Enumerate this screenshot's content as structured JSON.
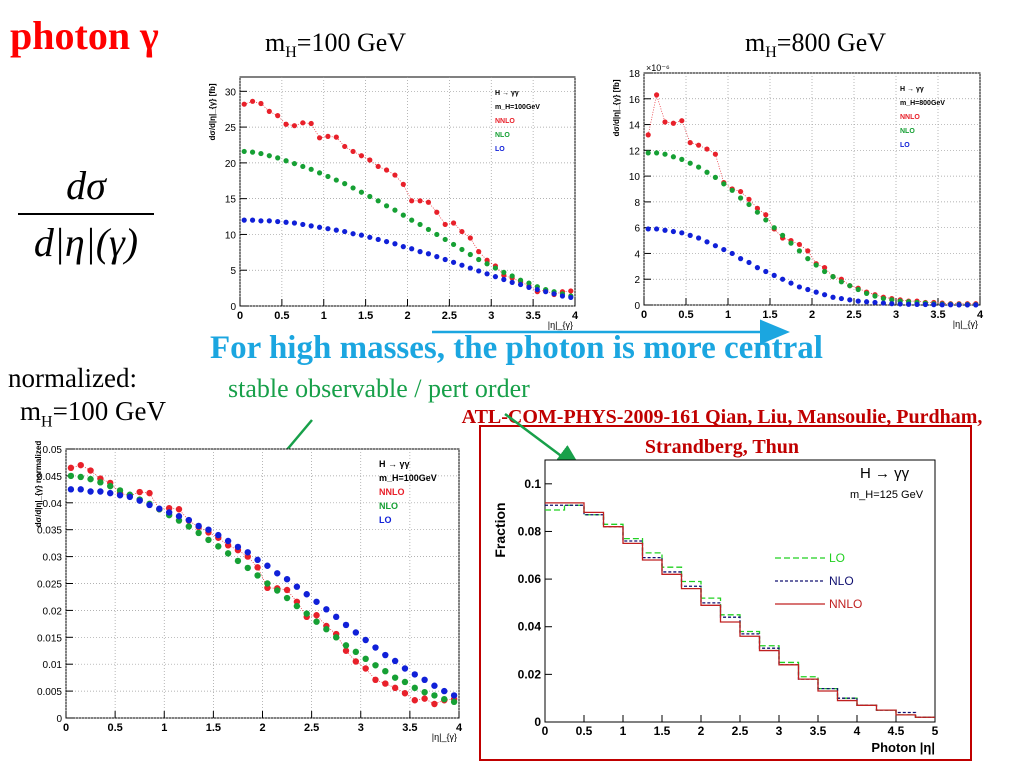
{
  "slide": {
    "title": "photon γ",
    "mass1": {
      "m": "m",
      "sub": "H",
      "rest": "=100 GeV"
    },
    "mass2": {
      "m": "m",
      "sub": "H",
      "rest": "=800 GeV"
    },
    "formula": {
      "numerator": "dσ",
      "denominator": "d|η|(γ)"
    },
    "headline": "For high masses, the photon is more central",
    "subline": "stable observable / pert order",
    "normalized_label": "normalized:",
    "normalized_mass": {
      "m": "m",
      "sub": "H",
      "rest": "=100 GeV"
    },
    "reference": "ATL-COM-PHYS-2009-161 Qian, Liu, Mansoulie, Purdham, Strandberg, Thun"
  },
  "colors": {
    "red": "#ff0000",
    "blue_text": "#1ba6e0",
    "green_text": "#18a04a",
    "ref": "#c00000",
    "nnlo": "#e8202a",
    "nlo": "#16a034",
    "lo": "#1020d8"
  },
  "chart_data": [
    {
      "type": "scatter",
      "panel": "top-left",
      "ylabel": "dσ/d|η|_{γ} [fb]",
      "xlabel": "|η|_{γ}",
      "xlim": [
        0,
        4
      ],
      "ylim": [
        0,
        32
      ],
      "xticks": [
        "0",
        "0.5",
        "1",
        "1.5",
        "2",
        "2.5",
        "3",
        "3.5",
        "4"
      ],
      "yticks": [
        "0",
        "5",
        "10",
        "15",
        "20",
        "25",
        "30"
      ],
      "legend": [
        "H → γγ",
        "m_H=100GeV",
        "NNLO",
        "NLO",
        "LO"
      ],
      "legend_position": "top-right",
      "x": [
        0.05,
        0.15,
        0.25,
        0.35,
        0.45,
        0.55,
        0.65,
        0.75,
        0.85,
        0.95,
        1.05,
        1.15,
        1.25,
        1.35,
        1.45,
        1.55,
        1.65,
        1.75,
        1.85,
        1.95,
        2.05,
        2.15,
        2.25,
        2.35,
        2.45,
        2.55,
        2.65,
        2.75,
        2.85,
        2.95,
        3.05,
        3.15,
        3.25,
        3.35,
        3.45,
        3.55,
        3.65,
        3.75,
        3.85,
        3.95
      ],
      "series": [
        {
          "name": "NNLO",
          "values": [
            28.2,
            28.6,
            28.3,
            27.2,
            26.6,
            25.4,
            25.2,
            25.6,
            25.5,
            23.5,
            23.7,
            23.6,
            22.3,
            21.6,
            21.0,
            20.4,
            19.5,
            19.0,
            18.3,
            17.0,
            14.7,
            14.7,
            14.5,
            13.1,
            11.4,
            11.6,
            10.4,
            9.5,
            7.6,
            6.4,
            5.6,
            4.3,
            3.9,
            3.4,
            2.8,
            2.0,
            2.2,
            1.6,
            2.0,
            2.1
          ]
        },
        {
          "name": "NLO",
          "values": [
            21.6,
            21.5,
            21.3,
            21.0,
            20.7,
            20.3,
            19.9,
            19.5,
            19.1,
            18.6,
            18.1,
            17.6,
            17.1,
            16.5,
            15.9,
            15.3,
            14.7,
            14.0,
            13.4,
            12.7,
            12.0,
            11.4,
            10.7,
            10.0,
            9.3,
            8.6,
            7.9,
            7.2,
            6.5,
            5.9,
            5.3,
            4.7,
            4.2,
            3.6,
            3.2,
            2.7,
            2.3,
            2.0,
            1.7,
            1.4
          ]
        },
        {
          "name": "LO",
          "values": [
            12.0,
            12.0,
            11.9,
            11.9,
            11.8,
            11.7,
            11.6,
            11.4,
            11.2,
            11.0,
            10.8,
            10.6,
            10.4,
            10.1,
            9.9,
            9.6,
            9.3,
            9.0,
            8.7,
            8.3,
            8.0,
            7.6,
            7.3,
            6.9,
            6.5,
            6.1,
            5.7,
            5.3,
            4.9,
            4.5,
            4.1,
            3.7,
            3.3,
            3.0,
            2.6,
            2.3,
            2.0,
            1.7,
            1.4,
            1.2
          ]
        }
      ]
    },
    {
      "type": "scatter",
      "panel": "top-right",
      "ylabel": "dσ/d|η|_{γ} [fb]",
      "xlabel": "|η|_{γ}",
      "scale_label": "×10⁻⁶",
      "xlim": [
        0,
        4
      ],
      "ylim": [
        0,
        18
      ],
      "xticks": [
        "0",
        "0.5",
        "1",
        "1.5",
        "2",
        "2.5",
        "3",
        "3.5",
        "4"
      ],
      "yticks": [
        "0",
        "2",
        "4",
        "6",
        "8",
        "10",
        "12",
        "14",
        "16",
        "18"
      ],
      "legend": [
        "H → γγ",
        "m_H=800GeV",
        "NNLO",
        "NLO",
        "LO"
      ],
      "legend_position": "top-right",
      "x": [
        0.05,
        0.15,
        0.25,
        0.35,
        0.45,
        0.55,
        0.65,
        0.75,
        0.85,
        0.95,
        1.05,
        1.15,
        1.25,
        1.35,
        1.45,
        1.55,
        1.65,
        1.75,
        1.85,
        1.95,
        2.05,
        2.15,
        2.25,
        2.35,
        2.45,
        2.55,
        2.65,
        2.75,
        2.85,
        2.95,
        3.05,
        3.15,
        3.25,
        3.35,
        3.45,
        3.55,
        3.65,
        3.75,
        3.85,
        3.95
      ],
      "series": [
        {
          "name": "NNLO",
          "values": [
            13.2,
            16.3,
            14.2,
            14.1,
            14.3,
            12.6,
            12.4,
            12.1,
            11.7,
            9.5,
            9.0,
            8.8,
            8.2,
            7.5,
            7.0,
            5.9,
            5.2,
            5.0,
            4.7,
            4.2,
            3.2,
            2.9,
            2.2,
            2.0,
            1.5,
            1.3,
            1.0,
            0.8,
            0.6,
            0.5,
            0.4,
            0.3,
            0.3,
            0.2,
            0.2,
            0.15,
            0.1,
            0.1,
            0.1,
            0.1
          ]
        },
        {
          "name": "NLO",
          "values": [
            11.8,
            11.8,
            11.7,
            11.5,
            11.3,
            11.0,
            10.7,
            10.3,
            9.9,
            9.4,
            8.9,
            8.3,
            7.8,
            7.2,
            6.6,
            6.0,
            5.4,
            4.8,
            4.2,
            3.6,
            3.1,
            2.6,
            2.2,
            1.8,
            1.5,
            1.2,
            0.9,
            0.7,
            0.5,
            0.4,
            0.3,
            0.25,
            0.2,
            0.15,
            0.1,
            0.08,
            0.06,
            0.05,
            0.04,
            0.03
          ]
        },
        {
          "name": "LO",
          "values": [
            5.9,
            5.9,
            5.8,
            5.7,
            5.6,
            5.4,
            5.2,
            4.9,
            4.6,
            4.3,
            4.0,
            3.6,
            3.3,
            2.9,
            2.6,
            2.3,
            2.0,
            1.7,
            1.4,
            1.2,
            1.0,
            0.8,
            0.6,
            0.5,
            0.4,
            0.3,
            0.25,
            0.2,
            0.15,
            0.1,
            0.08,
            0.06,
            0.05,
            0.04,
            0.03,
            0.02,
            0.02,
            0.01,
            0.01,
            0.01
          ]
        }
      ]
    },
    {
      "type": "scatter",
      "panel": "bottom-left",
      "ylabel": "dσ/d|η|_{γ} normalized",
      "xlabel": "|η|_{γ}",
      "xlim": [
        0,
        4
      ],
      "ylim": [
        0,
        0.05
      ],
      "xticks": [
        "0",
        "0.5",
        "1",
        "1.5",
        "2",
        "2.5",
        "3",
        "3.5",
        "4"
      ],
      "yticks": [
        "0",
        "0.005",
        "0.01",
        "0.015",
        "0.02",
        "0.025",
        "0.03",
        "0.035",
        "0.04",
        "0.045",
        "0.05"
      ],
      "legend": [
        "H → γγ",
        "m_H=100GeV",
        "NNLO",
        "NLO",
        "LO"
      ],
      "legend_position": "top-right",
      "x": [
        0.05,
        0.15,
        0.25,
        0.35,
        0.45,
        0.55,
        0.65,
        0.75,
        0.85,
        0.95,
        1.05,
        1.15,
        1.25,
        1.35,
        1.45,
        1.55,
        1.65,
        1.75,
        1.85,
        1.95,
        2.05,
        2.15,
        2.25,
        2.35,
        2.45,
        2.55,
        2.65,
        2.75,
        2.85,
        2.95,
        3.05,
        3.15,
        3.25,
        3.35,
        3.45,
        3.55,
        3.65,
        3.75,
        3.85,
        3.95
      ],
      "series": [
        {
          "name": "NNLO",
          "values": [
            0.0465,
            0.047,
            0.046,
            0.0445,
            0.0437,
            0.0418,
            0.0413,
            0.042,
            0.0418,
            0.0388,
            0.039,
            0.0388,
            0.0367,
            0.0355,
            0.0345,
            0.0335,
            0.0321,
            0.0312,
            0.03,
            0.028,
            0.0242,
            0.0241,
            0.0238,
            0.0216,
            0.0188,
            0.0191,
            0.0171,
            0.0156,
            0.0125,
            0.0105,
            0.0092,
            0.0071,
            0.0064,
            0.0056,
            0.0046,
            0.0033,
            0.0036,
            0.0026,
            0.0033,
            0.0035
          ]
        },
        {
          "name": "NLO",
          "values": [
            0.045,
            0.0448,
            0.0444,
            0.0438,
            0.0431,
            0.0423,
            0.0415,
            0.0406,
            0.0398,
            0.0388,
            0.0377,
            0.0367,
            0.0356,
            0.0344,
            0.0331,
            0.0319,
            0.0306,
            0.0292,
            0.0279,
            0.0265,
            0.025,
            0.0237,
            0.0223,
            0.0208,
            0.0194,
            0.0179,
            0.0165,
            0.015,
            0.0135,
            0.0123,
            0.011,
            0.0098,
            0.0087,
            0.0075,
            0.0067,
            0.0056,
            0.0048,
            0.0042,
            0.0035,
            0.003
          ]
        },
        {
          "name": "LO",
          "values": [
            0.0425,
            0.0425,
            0.0421,
            0.0421,
            0.0418,
            0.0414,
            0.0411,
            0.0404,
            0.0396,
            0.0389,
            0.0382,
            0.0375,
            0.0368,
            0.0357,
            0.035,
            0.034,
            0.0329,
            0.0318,
            0.0308,
            0.0294,
            0.0283,
            0.0269,
            0.0258,
            0.0244,
            0.023,
            0.0216,
            0.0202,
            0.0188,
            0.0173,
            0.0159,
            0.0145,
            0.0131,
            0.0117,
            0.0106,
            0.0092,
            0.0081,
            0.0071,
            0.006,
            0.005,
            0.0042
          ]
        }
      ]
    },
    {
      "type": "line",
      "panel": "bottom-right",
      "ylabel": "Fraction",
      "xlabel": "Photon |η|",
      "xlim": [
        0,
        5
      ],
      "ylim": [
        0,
        0.11
      ],
      "xticks": [
        "0",
        "0.5",
        "1",
        "1.5",
        "2",
        "2.5",
        "3",
        "3.5",
        "4",
        "4.5",
        "5"
      ],
      "yticks": [
        "0",
        "0.02",
        "0.04",
        "0.06",
        "0.08",
        "0.1"
      ],
      "legend_title": [
        "H → γγ",
        "m_H=125 GeV"
      ],
      "legend": [
        "LO",
        "NLO",
        "NNLO"
      ],
      "legend_position": "right",
      "bin_edges": [
        0,
        0.25,
        0.5,
        0.75,
        1,
        1.25,
        1.5,
        1.75,
        2,
        2.25,
        2.5,
        2.75,
        3,
        3.25,
        3.5,
        3.75,
        4,
        4.25,
        4.5,
        4.75,
        5
      ],
      "series": [
        {
          "name": "LO",
          "style": "dashed",
          "values": [
            0.089,
            0.091,
            0.087,
            0.083,
            0.077,
            0.071,
            0.065,
            0.059,
            0.052,
            0.045,
            0.038,
            0.032,
            0.025,
            0.019,
            0.014,
            0.01,
            0.007,
            0.005,
            0.003,
            0.002
          ]
        },
        {
          "name": "NLO",
          "style": "dashed",
          "values": [
            0.091,
            0.091,
            0.087,
            0.082,
            0.076,
            0.069,
            0.063,
            0.057,
            0.05,
            0.044,
            0.037,
            0.031,
            0.024,
            0.018,
            0.014,
            0.01,
            0.007,
            0.005,
            0.004,
            0.002
          ]
        },
        {
          "name": "NNLO",
          "style": "solid",
          "values": [
            0.092,
            0.092,
            0.088,
            0.082,
            0.075,
            0.068,
            0.062,
            0.056,
            0.049,
            0.042,
            0.036,
            0.03,
            0.024,
            0.018,
            0.013,
            0.009,
            0.007,
            0.005,
            0.003,
            0.002
          ]
        }
      ]
    }
  ]
}
